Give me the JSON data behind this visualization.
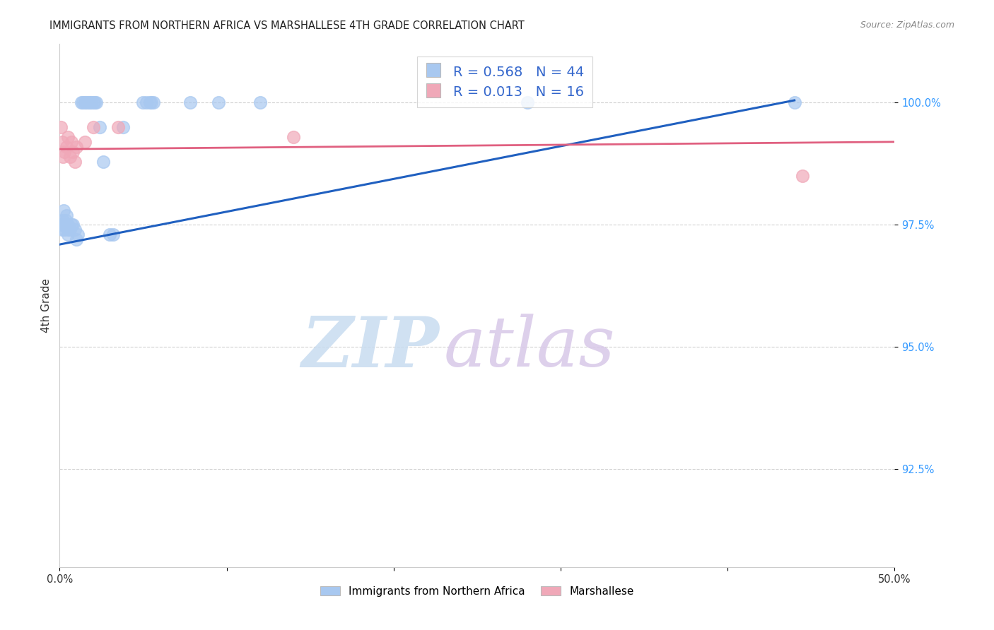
{
  "title": "IMMIGRANTS FROM NORTHERN AFRICA VS MARSHALLESE 4TH GRADE CORRELATION CHART",
  "source": "Source: ZipAtlas.com",
  "ylabel": "4th Grade",
  "y_ticks": [
    92.5,
    95.0,
    97.5,
    100.0
  ],
  "y_tick_labels": [
    "92.5%",
    "95.0%",
    "97.5%",
    "100.0%"
  ],
  "xlim": [
    0.0,
    50.0
  ],
  "ylim": [
    90.5,
    101.2
  ],
  "legend_blue_r": "0.568",
  "legend_blue_n": "44",
  "legend_pink_r": "0.013",
  "legend_pink_n": "16",
  "blue_color": "#A8C8F0",
  "pink_color": "#F0A8B8",
  "blue_line_color": "#2060C0",
  "pink_line_color": "#E06080",
  "blue_scatter": [
    [
      0.1,
      97.5
    ],
    [
      0.15,
      97.4
    ],
    [
      0.2,
      97.6
    ],
    [
      0.2,
      97.5
    ],
    [
      0.25,
      97.8
    ],
    [
      0.3,
      97.5
    ],
    [
      0.3,
      97.4
    ],
    [
      0.35,
      97.6
    ],
    [
      0.4,
      97.7
    ],
    [
      0.4,
      97.5
    ],
    [
      0.5,
      97.5
    ],
    [
      0.5,
      97.4
    ],
    [
      0.5,
      97.3
    ],
    [
      0.6,
      97.4
    ],
    [
      0.7,
      97.5
    ],
    [
      0.8,
      97.5
    ],
    [
      0.9,
      97.4
    ],
    [
      1.0,
      97.2
    ],
    [
      1.1,
      97.3
    ],
    [
      1.3,
      100.0
    ],
    [
      1.4,
      100.0
    ],
    [
      1.5,
      100.0
    ],
    [
      1.6,
      100.0
    ],
    [
      1.7,
      100.0
    ],
    [
      1.8,
      100.0
    ],
    [
      1.9,
      100.0
    ],
    [
      2.0,
      100.0
    ],
    [
      2.1,
      100.0
    ],
    [
      2.2,
      100.0
    ],
    [
      2.4,
      99.5
    ],
    [
      2.6,
      98.8
    ],
    [
      3.0,
      97.3
    ],
    [
      3.2,
      97.3
    ],
    [
      3.8,
      99.5
    ],
    [
      5.0,
      100.0
    ],
    [
      5.2,
      100.0
    ],
    [
      5.4,
      100.0
    ],
    [
      5.5,
      100.0
    ],
    [
      5.6,
      100.0
    ],
    [
      7.8,
      100.0
    ],
    [
      9.5,
      100.0
    ],
    [
      12.0,
      100.0
    ],
    [
      28.0,
      100.0
    ],
    [
      44.0,
      100.0
    ]
  ],
  "pink_scatter": [
    [
      0.05,
      99.5
    ],
    [
      0.15,
      99.2
    ],
    [
      0.2,
      98.9
    ],
    [
      0.3,
      99.0
    ],
    [
      0.4,
      99.1
    ],
    [
      0.5,
      99.3
    ],
    [
      0.6,
      98.9
    ],
    [
      0.7,
      99.2
    ],
    [
      0.8,
      99.0
    ],
    [
      0.9,
      98.8
    ],
    [
      1.0,
      99.1
    ],
    [
      1.5,
      99.2
    ],
    [
      2.0,
      99.5
    ],
    [
      3.5,
      99.5
    ],
    [
      14.0,
      99.3
    ],
    [
      44.5,
      98.5
    ]
  ],
  "blue_trend_x": [
    0.0,
    44.0
  ],
  "blue_trend_y": [
    97.1,
    100.05
  ],
  "pink_trend_x": [
    0.0,
    50.0
  ],
  "pink_trend_y": [
    99.05,
    99.2
  ],
  "watermark_zip": "ZIP",
  "watermark_atlas": "atlas",
  "background_color": "#FFFFFF",
  "grid_color": "#CCCCCC",
  "title_fontsize": 10.5,
  "source_fontsize": 9
}
